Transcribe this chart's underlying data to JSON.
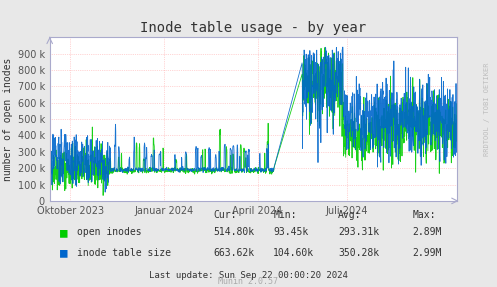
{
  "title": "Inode table usage - by year",
  "ylabel": "number of open inodes",
  "background_color": "#FFFFFF",
  "plot_bg_color": "#FFFFFF",
  "grid_color": "#FF9999",
  "axis_color": "#AAAACC",
  "text_color": "#333333",
  "ylim": [
    0,
    1000000
  ],
  "yticks": [
    0,
    100000,
    200000,
    300000,
    400000,
    500000,
    600000,
    700000,
    800000,
    900000
  ],
  "ytick_labels": [
    "0",
    "100 k",
    "200 k",
    "300 k",
    "400 k",
    "500 k",
    "600 k",
    "700 k",
    "800 k",
    "900 k"
  ],
  "xtick_labels": [
    "Oktober 2023",
    "Januar 2024",
    "April 2024",
    "Juli 2024"
  ],
  "green_color": "#00CC00",
  "blue_color": "#0066CC",
  "legend_labels": [
    "open inodes",
    "inode table size"
  ],
  "footer_text": "Munin 2.0.57",
  "stats_text": "Cur:\nMin:\nAvg:\nMax:",
  "watermark": "RRDTOOL / TOBI OETIKER",
  "table_headers": [
    "Cur:",
    "Min:",
    "Avg:",
    "Max:"
  ],
  "table_row1": [
    "514.80k",
    "93.45k",
    "293.31k",
    "2.89M"
  ],
  "table_row2": [
    "663.62k",
    "104.60k",
    "350.28k",
    "2.99M"
  ],
  "last_update": "Last update: Sun Sep 22 00:00:20 2024"
}
